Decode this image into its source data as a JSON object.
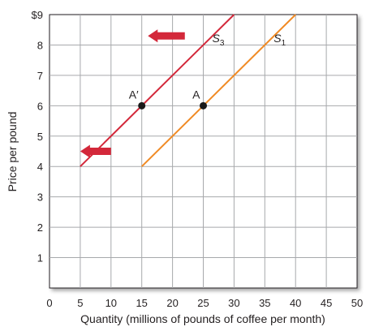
{
  "chart_data": {
    "type": "line",
    "xlabel": "Quantity (millions of pounds of coffee per month)",
    "ylabel": "Price per pound",
    "xlim": [
      0,
      50
    ],
    "ylim": [
      0,
      9
    ],
    "x_ticks": [
      "0",
      "5",
      "10",
      "15",
      "20",
      "25",
      "30",
      "35",
      "40",
      "45",
      "50"
    ],
    "y_ticks": [
      "",
      "1",
      "2",
      "3",
      "4",
      "5",
      "6",
      "7",
      "8",
      "$9"
    ],
    "grid": true,
    "series": [
      {
        "name": "S1",
        "label_main": "S",
        "label_sub": "1",
        "color": "#f08a24",
        "x": [
          15,
          40
        ],
        "y": [
          4,
          9
        ]
      },
      {
        "name": "S3",
        "label_main": "S",
        "label_sub": "3",
        "color": "#d3283a",
        "x": [
          5,
          30
        ],
        "y": [
          4,
          9
        ]
      }
    ],
    "points": [
      {
        "label": "A",
        "x": 25,
        "y": 6
      },
      {
        "label": "A′",
        "x": 15,
        "y": 6
      }
    ],
    "arrows": [
      {
        "direction": "left",
        "x_tail": 22,
        "x_head": 16,
        "y": 8.3
      },
      {
        "direction": "left",
        "x_tail": 10,
        "x_head": 5,
        "y": 4.5
      }
    ],
    "colors": {
      "grid": "#a7a9ac",
      "arrow": "#d3283a",
      "point": "#1a1a1a",
      "axis": "#231f20"
    }
  }
}
